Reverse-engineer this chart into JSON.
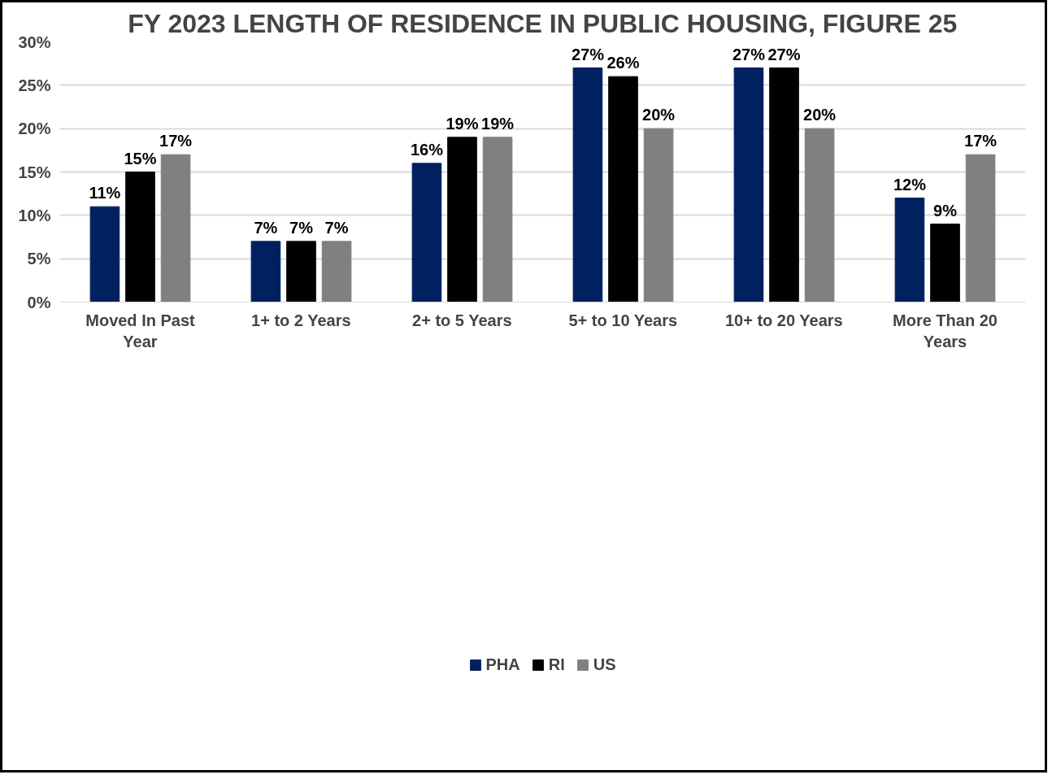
{
  "chart_data": {
    "type": "bar",
    "title": "FY 2023 LENGTH OF RESIDENCE IN PUBLIC HOUSING, FIGURE 25",
    "categories": [
      "Moved In Past Year",
      "1+ to 2 Years",
      "2+ to 5 Years",
      "5+ to 10 Years",
      "10+ to 20 Years",
      "More Than 20 Years"
    ],
    "series": [
      {
        "name": "PHA",
        "color": "#002060",
        "values": [
          11,
          7,
          16,
          27,
          27,
          12
        ],
        "value_labels": [
          "11%",
          "7%",
          "16%",
          "27%",
          "27%",
          "12%"
        ]
      },
      {
        "name": "RI",
        "color": "#000000",
        "values": [
          15,
          7,
          19,
          26,
          27,
          9
        ],
        "value_labels": [
          "15%",
          "7%",
          "19%",
          "26%",
          "27%",
          "9%"
        ]
      },
      {
        "name": "US",
        "color": "#808080",
        "values": [
          17,
          7,
          19,
          20,
          20,
          17
        ],
        "value_labels": [
          "17%",
          "7%",
          "19%",
          "20%",
          "20%",
          "17%"
        ]
      }
    ],
    "ylim": [
      0,
      30
    ],
    "yticks": [
      {
        "value": 0,
        "label": "0%"
      },
      {
        "value": 5,
        "label": "5%"
      },
      {
        "value": 10,
        "label": "10%"
      },
      {
        "value": 15,
        "label": "15%"
      },
      {
        "value": 20,
        "label": "20%"
      },
      {
        "value": 25,
        "label": "25%"
      },
      {
        "value": 30,
        "label": "30%"
      }
    ],
    "grid": "y",
    "legend": "bottom"
  }
}
